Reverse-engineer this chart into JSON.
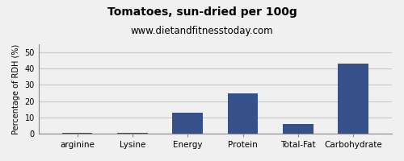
{
  "title": "Tomatoes, sun-dried per 100g",
  "subtitle": "www.dietandfitnesstoday.com",
  "categories": [
    "arginine",
    "Lysine",
    "Energy",
    "Protein",
    "Total-Fat",
    "Carbohydrate"
  ],
  "values": [
    0.3,
    0.3,
    13,
    25,
    6,
    43
  ],
  "bar_color": "#35508a",
  "ylabel": "Percentage of RDH (%)",
  "ylim": [
    0,
    55
  ],
  "yticks": [
    0,
    10,
    20,
    30,
    40,
    50
  ],
  "background_color": "#f0f0f0",
  "plot_bg_color": "#f0f0f0",
  "title_fontsize": 10,
  "subtitle_fontsize": 8.5,
  "ylabel_fontsize": 7,
  "xlabel_fontsize": 7.5,
  "grid_color": "#c8c8c8",
  "bar_width": 0.55
}
